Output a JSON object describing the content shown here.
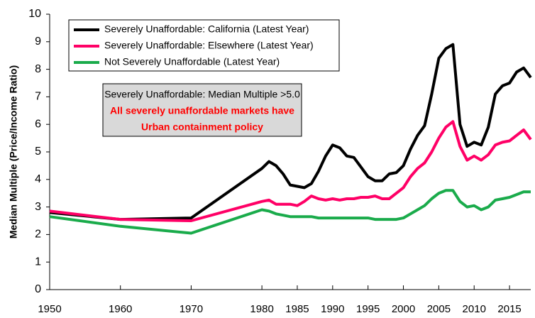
{
  "chart_data": {
    "type": "line",
    "y_label": "Median Multiple (Price/Income Ratio)",
    "x": [
      1950,
      1960,
      1970,
      1980,
      1981,
      1982,
      1983,
      1984,
      1985,
      1986,
      1987,
      1988,
      1989,
      1990,
      1991,
      1992,
      1993,
      1994,
      1995,
      1996,
      1997,
      1998,
      1999,
      2000,
      2001,
      2002,
      2003,
      2004,
      2005,
      2006,
      2007,
      2008,
      2009,
      2010,
      2011,
      2012,
      2013,
      2014,
      2015,
      2016,
      2017,
      2018
    ],
    "series": [
      {
        "name": "Severely Unaffordable: California (Latest Year)",
        "color": "#000000",
        "values": [
          2.8,
          2.55,
          2.6,
          4.4,
          4.65,
          4.5,
          4.2,
          3.8,
          3.75,
          3.7,
          3.85,
          4.3,
          4.85,
          5.25,
          5.15,
          4.85,
          4.8,
          4.45,
          4.1,
          3.95,
          3.95,
          4.2,
          4.25,
          4.5,
          5.1,
          5.6,
          5.95,
          7.1,
          8.4,
          8.75,
          8.9,
          6.0,
          5.2,
          5.35,
          5.25,
          5.9,
          7.1,
          7.4,
          7.5,
          7.9,
          8.05,
          7.7
        ]
      },
      {
        "name": "Severely Unaffordable: Elsewhere (Latest Year)",
        "color": "#ff0066",
        "values": [
          2.85,
          2.55,
          2.5,
          3.2,
          3.25,
          3.1,
          3.1,
          3.1,
          3.05,
          3.2,
          3.4,
          3.3,
          3.25,
          3.3,
          3.25,
          3.3,
          3.3,
          3.35,
          3.35,
          3.4,
          3.3,
          3.3,
          3.5,
          3.7,
          4.1,
          4.4,
          4.6,
          5.0,
          5.5,
          5.9,
          6.1,
          5.2,
          4.7,
          4.85,
          4.7,
          4.9,
          5.25,
          5.35,
          5.4,
          5.6,
          5.8,
          5.45
        ]
      },
      {
        "name": "Not Severely Unaffordable (Latest Year)",
        "color": "#1aab4b",
        "values": [
          2.65,
          2.3,
          2.05,
          2.9,
          2.85,
          2.75,
          2.7,
          2.65,
          2.65,
          2.65,
          2.65,
          2.6,
          2.6,
          2.6,
          2.6,
          2.6,
          2.6,
          2.6,
          2.6,
          2.55,
          2.55,
          2.55,
          2.55,
          2.6,
          2.75,
          2.9,
          3.05,
          3.3,
          3.5,
          3.6,
          3.6,
          3.2,
          3.0,
          3.05,
          2.9,
          3.0,
          3.25,
          3.3,
          3.35,
          3.45,
          3.55,
          3.55
        ]
      }
    ],
    "annotation": [
      "Severely Unaffordable: Median Multiple >5.0",
      "All severely unaffordable markets have",
      "Urban containment policy"
    ],
    "xlim": [
      1950,
      2018
    ],
    "xticks": [
      1950,
      1960,
      1970,
      1980,
      1985,
      1990,
      1995,
      2000,
      2005,
      2010,
      2015
    ],
    "ylim": [
      0,
      10
    ],
    "yticks": [
      0,
      1,
      2,
      3,
      4,
      5,
      6,
      7,
      8,
      9,
      10
    ],
    "legend": "top-left"
  }
}
